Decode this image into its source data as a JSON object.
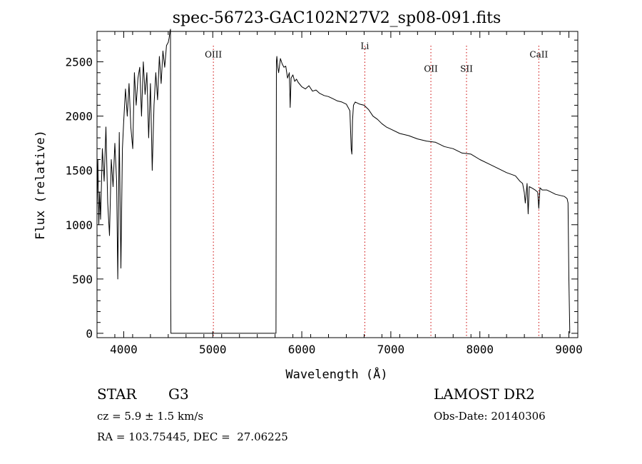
{
  "chart_data": {
    "type": "line",
    "title": "spec-56723-GAC102N27V2_sp08-091.fits",
    "xlabel": "Wavelength (Å)",
    "ylabel": "Flux (relative)",
    "xlim": [
      3700,
      9100
    ],
    "ylim": [
      -40,
      2780
    ],
    "x_ticks": [
      4000,
      5000,
      6000,
      7000,
      8000,
      9000
    ],
    "y_ticks": [
      0,
      500,
      1000,
      1500,
      2000,
      2500
    ],
    "grid": false,
    "line_color": "#000000",
    "marker_color": "#cc0000",
    "line_markers": [
      {
        "name": "OIII",
        "wavelength": 5007,
        "label_flux": 2540
      },
      {
        "name": "Li",
        "wavelength": 6708,
        "label_flux": 2620
      },
      {
        "name": "OII",
        "wavelength": 7450,
        "label_flux": 2410
      },
      {
        "name": "SII",
        "wavelength": 7850,
        "label_flux": 2410
      },
      {
        "name": "CaII",
        "wavelength": 8662,
        "label_flux": 2540
      }
    ],
    "series": [
      {
        "name": "flux",
        "x": [
          3700,
          3710,
          3720,
          3730,
          3740,
          3760,
          3780,
          3800,
          3820,
          3840,
          3860,
          3880,
          3900,
          3920,
          3933,
          3950,
          3968,
          3985,
          4000,
          4020,
          4040,
          4060,
          4080,
          4101,
          4120,
          4140,
          4160,
          4180,
          4200,
          4220,
          4240,
          4260,
          4280,
          4300,
          4320,
          4340,
          4360,
          4380,
          4400,
          4420,
          4440,
          4460,
          4480,
          4500,
          4510,
          4520,
          4525,
          4528,
          4530,
          5710,
          5715,
          5720,
          5730,
          5740,
          5760,
          5780,
          5800,
          5820,
          5840,
          5860,
          5870,
          5880,
          5900,
          5920,
          5940,
          5960,
          5980,
          6000,
          6040,
          6080,
          6120,
          6160,
          6200,
          6250,
          6300,
          6350,
          6400,
          6450,
          6500,
          6540,
          6555,
          6563,
          6570,
          6580,
          6600,
          6650,
          6700,
          6750,
          6800,
          6850,
          6900,
          6950,
          7000,
          7100,
          7200,
          7300,
          7400,
          7500,
          7600,
          7700,
          7800,
          7900,
          8000,
          8100,
          8200,
          8300,
          8400,
          8450,
          8480,
          8498,
          8510,
          8530,
          8542,
          8555,
          8580,
          8620,
          8650,
          8662,
          8675,
          8700,
          8750,
          8800,
          8850,
          8900,
          8950,
          8980,
          8990,
          9000,
          9010
        ],
        "values": [
          1150,
          1600,
          1000,
          1300,
          1050,
          1700,
          1400,
          1900,
          1200,
          900,
          1600,
          1350,
          1750,
          1400,
          500,
          1850,
          600,
          1700,
          1950,
          2250,
          2000,
          2300,
          1900,
          1700,
          2400,
          2100,
          2350,
          2450,
          2000,
          2500,
          2200,
          2400,
          1800,
          2300,
          1500,
          2100,
          2400,
          2150,
          2550,
          2300,
          2600,
          2450,
          2650,
          2680,
          2720,
          2780,
          2800,
          400,
          0,
          0,
          2500,
          2550,
          2450,
          2400,
          2530,
          2480,
          2450,
          2460,
          2350,
          2400,
          2080,
          2350,
          2380,
          2320,
          2340,
          2310,
          2290,
          2270,
          2250,
          2280,
          2230,
          2240,
          2210,
          2190,
          2180,
          2160,
          2140,
          2130,
          2110,
          2050,
          1700,
          1650,
          1960,
          2100,
          2130,
          2110,
          2100,
          2060,
          2000,
          1970,
          1930,
          1900,
          1880,
          1840,
          1820,
          1790,
          1770,
          1760,
          1720,
          1700,
          1660,
          1650,
          1600,
          1560,
          1520,
          1480,
          1450,
          1400,
          1380,
          1300,
          1200,
          1380,
          1100,
          1350,
          1340,
          1320,
          1300,
          1150,
          1340,
          1320,
          1320,
          1300,
          1280,
          1270,
          1260,
          1240,
          1200,
          500,
          0
        ]
      }
    ]
  },
  "info": {
    "object_class": "STAR",
    "subclass": "G3",
    "redshift_text": "cz = 5.9 ± 1.5 km/s",
    "coords_text": "RA = 103.75445, DEC =  27.06225",
    "survey": "LAMOST DR2",
    "obs_date": "Obs-Date: 20140306"
  }
}
